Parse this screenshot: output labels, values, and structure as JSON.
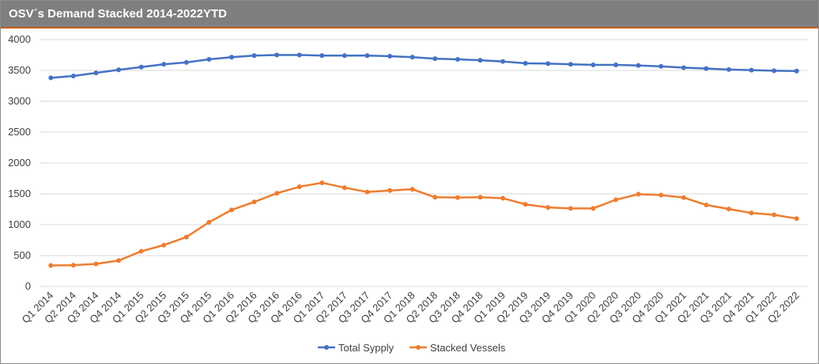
{
  "chart_data": {
    "type": "line",
    "title": "OSV´s Demand Stacked 2014-2022YTD",
    "xlabel": "",
    "ylabel": "",
    "ylim": [
      0,
      4000
    ],
    "yticks": [
      0,
      500,
      1000,
      1500,
      2000,
      2500,
      3000,
      3500,
      4000
    ],
    "grid": true,
    "legend_position": "bottom",
    "categories": [
      "Q1 2014",
      "Q2 2014",
      "Q3 2014",
      "Q4 2014",
      "Q1 2015",
      "Q2 2015",
      "Q3 2015",
      "Q4 2015",
      "Q1 2016",
      "Q2 2016",
      "Q3 2016",
      "Q4 2016",
      "Q1 2017",
      "Q2 2017",
      "Q3 2017",
      "Q4 2017",
      "Q1 2018",
      "Q2 2018",
      "Q3 2018",
      "Q4 2018",
      "Q1 2019",
      "Q2 2019",
      "Q3 2019",
      "Q4 2019",
      "Q1 2020",
      "Q2 2020",
      "Q3 2020",
      "Q4 2020",
      "Q1 2021",
      "Q2 2021",
      "Q3 2021",
      "Q4 2021",
      "Q1 2022",
      "Q2 2022"
    ],
    "series": [
      {
        "name": "Total Sypply",
        "color": "#4472c4",
        "values": [
          3380,
          3410,
          3460,
          3510,
          3555,
          3600,
          3630,
          3680,
          3715,
          3740,
          3750,
          3750,
          3740,
          3740,
          3740,
          3730,
          3715,
          3690,
          3680,
          3665,
          3645,
          3615,
          3610,
          3600,
          3590,
          3590,
          3580,
          3565,
          3545,
          3530,
          3515,
          3505,
          3495,
          3490
        ]
      },
      {
        "name": "Stacked Vessels",
        "color": "#ed7d31",
        "values": [
          340,
          345,
          365,
          420,
          570,
          670,
          800,
          1040,
          1240,
          1370,
          1510,
          1615,
          1680,
          1600,
          1530,
          1555,
          1575,
          1445,
          1440,
          1445,
          1430,
          1330,
          1280,
          1265,
          1265,
          1405,
          1495,
          1480,
          1440,
          1320,
          1255,
          1190,
          1160,
          1100
        ]
      }
    ]
  }
}
